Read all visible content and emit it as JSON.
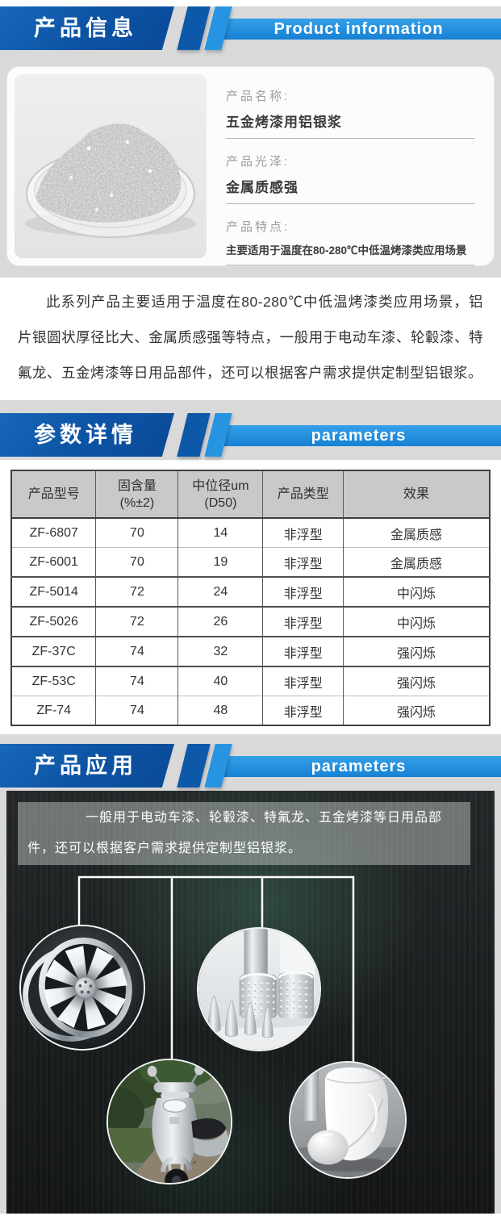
{
  "colors": {
    "page_bg": "#d9d9d9",
    "banner_dark_blue": "#0d53a4",
    "banner_light_blue": "#2794e2",
    "table_header_bg": "#c9c9c9",
    "dark_section_bg": "#1a1c1d",
    "caption_overlay": "rgba(198,202,202,0.48)"
  },
  "banners": [
    {
      "title_zh": "产品信息",
      "title_en": "Product information"
    },
    {
      "title_zh": "参数详情",
      "title_en": "parameters"
    },
    {
      "title_zh": "产品应用",
      "title_en": "parameters"
    }
  ],
  "product_card": {
    "photo_name": "aluminum-paste-dish-photo",
    "fields": [
      {
        "label": "产品名称:",
        "value": "五金烤漆用铝银浆"
      },
      {
        "label": "产品光泽:",
        "value": "金属质感强"
      },
      {
        "label": "产品特点:",
        "value": "主要适用于温度在80-280℃中低温烤漆类应用场景"
      }
    ]
  },
  "intro_paragraph": "此系列产品主要适用于温度在80-280℃中低温烤漆类应用场景，铝片银圆状厚径比大、金属质感强等特点，一般用于电动车漆、轮轂漆、特氟龙、五金烤漆等日用品部件，还可以根据客户需求提供定制型铝银浆。",
  "parameters_table": {
    "headers": [
      "产品型号",
      "固含量\n(%±2)",
      "中位径um\n(D50)",
      "产品类型",
      "效果"
    ],
    "rows": [
      [
        "ZF-6807",
        "70",
        "14",
        "非浮型",
        "金属质感"
      ],
      [
        "ZF-6001",
        "70",
        "19",
        "非浮型",
        "金属质感"
      ],
      [
        "ZF-5014",
        "72",
        "24",
        "非浮型",
        "中闪烁"
      ],
      [
        "ZF-5026",
        "72",
        "26",
        "非浮型",
        "中闪烁"
      ],
      [
        "ZF-37C",
        "74",
        "32",
        "非浮型",
        "强闪烁"
      ],
      [
        "ZF-53C",
        "74",
        "40",
        "非浮型",
        "强闪烁"
      ],
      [
        "ZF-74",
        "74",
        "48",
        "非浮型",
        "强闪烁"
      ]
    ]
  },
  "application": {
    "caption": "一般用于电动车漆、轮轂漆、特氟龙、五金烤漆等日用品部件，还可以根据客户需求提供定制型铝银浆。",
    "photo_names": [
      "alloy-wheel-photo",
      "metal-utensil-holders-photo",
      "scooter-photo",
      "white-housing-photo"
    ]
  }
}
